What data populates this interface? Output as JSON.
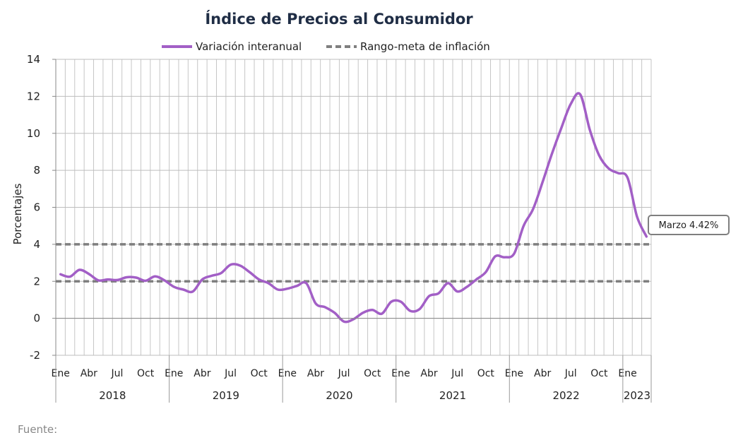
{
  "chart_data": {
    "type": "line",
    "title": "Índice de Precios al Consumidor",
    "ylabel": "Porcentajes",
    "xlabel": "",
    "ylim": [
      -2,
      14
    ],
    "yticks": [
      -2,
      0,
      2,
      4,
      6,
      8,
      10,
      12,
      14
    ],
    "grid": true,
    "legend_position": "top",
    "month_tick_labels": [
      "Ene",
      "Abr",
      "Jul",
      "Oct"
    ],
    "years": [
      "2018",
      "2019",
      "2020",
      "2021",
      "2022",
      "2023"
    ],
    "series": [
      {
        "name": "Variación interanual",
        "color": "#a25fc6",
        "style": "solid",
        "x": [
          "2018-01",
          "2018-02",
          "2018-03",
          "2018-04",
          "2018-05",
          "2018-06",
          "2018-07",
          "2018-08",
          "2018-09",
          "2018-10",
          "2018-11",
          "2018-12",
          "2019-01",
          "2019-02",
          "2019-03",
          "2019-04",
          "2019-05",
          "2019-06",
          "2019-07",
          "2019-08",
          "2019-09",
          "2019-10",
          "2019-11",
          "2019-12",
          "2020-01",
          "2020-02",
          "2020-03",
          "2020-04",
          "2020-05",
          "2020-06",
          "2020-07",
          "2020-08",
          "2020-09",
          "2020-10",
          "2020-11",
          "2020-12",
          "2021-01",
          "2021-02",
          "2021-03",
          "2021-04",
          "2021-05",
          "2021-06",
          "2021-07",
          "2021-08",
          "2021-09",
          "2021-10",
          "2021-11",
          "2021-12",
          "2022-01",
          "2022-02",
          "2022-03",
          "2022-04",
          "2022-05",
          "2022-06",
          "2022-07",
          "2022-08",
          "2022-09",
          "2022-10",
          "2022-11",
          "2022-12",
          "2023-01",
          "2023-02",
          "2023-03"
        ],
        "values": [
          2.38,
          2.25,
          2.62,
          2.4,
          2.05,
          2.1,
          2.07,
          2.22,
          2.2,
          2.03,
          2.27,
          2.05,
          1.7,
          1.55,
          1.45,
          2.1,
          2.3,
          2.45,
          2.9,
          2.85,
          2.5,
          2.1,
          1.9,
          1.55,
          1.6,
          1.75,
          1.9,
          0.8,
          0.6,
          0.3,
          -0.18,
          -0.05,
          0.3,
          0.45,
          0.25,
          0.9,
          0.9,
          0.4,
          0.5,
          1.2,
          1.35,
          1.9,
          1.45,
          1.7,
          2.1,
          2.5,
          3.35,
          3.3,
          3.5,
          5.0,
          5.9,
          7.35,
          8.9,
          10.3,
          11.6,
          12.1,
          10.2,
          8.8,
          8.1,
          7.85,
          7.6,
          5.5,
          4.42
        ]
      },
      {
        "name": "Rango-meta de inflación",
        "color": "#7f7f7f",
        "style": "dashed",
        "values": [
          2,
          4
        ]
      }
    ],
    "annotation": {
      "text": "Marzo 4.42%"
    },
    "source": "Fuente:"
  }
}
